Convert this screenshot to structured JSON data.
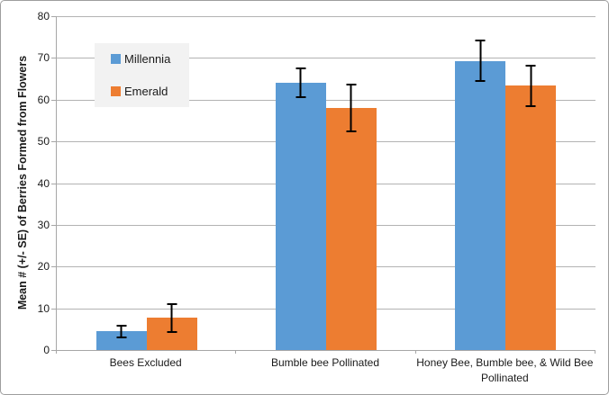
{
  "chart_data": {
    "type": "bar",
    "title": "",
    "xlabel": "",
    "ylabel": "Mean # (+/- SE) of Berries Formed from Flowers",
    "categories": [
      "Bees Excluded",
      "Bumble bee Pollinated",
      "Honey Bee, Bumble bee, & Wild Bee Pollinated"
    ],
    "series": [
      {
        "name": "Millennia",
        "color": "#5B9BD5",
        "values": [
          4.5,
          64.0,
          69.3
        ],
        "se": [
          1.6,
          3.7,
          5.1
        ]
      },
      {
        "name": "Emerald",
        "color": "#ED7D31",
        "values": [
          7.7,
          58.0,
          63.3
        ],
        "se": [
          3.5,
          5.8,
          5.1
        ]
      }
    ],
    "ylim": [
      0,
      80
    ],
    "yticks": [
      0,
      10,
      20,
      30,
      40,
      50,
      60,
      70,
      80
    ],
    "grid": true,
    "error_bars": true,
    "legend_position": "upper-left-inside"
  },
  "style_colors": {
    "gridline": "#b3b3b3",
    "legend_background": "#f2f2f2",
    "series_blue": "#5B9BD5",
    "series_orange": "#ED7D31"
  }
}
